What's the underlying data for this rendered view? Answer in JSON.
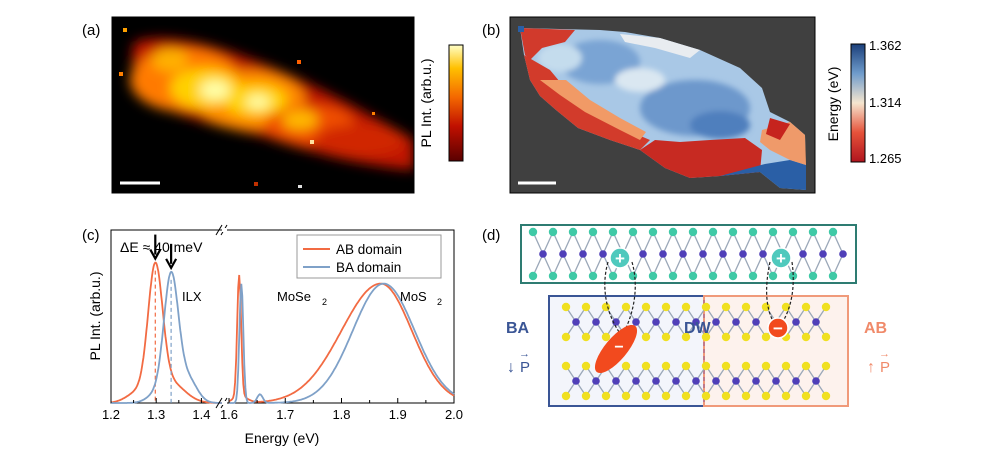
{
  "panels": {
    "a": {
      "label": "(a)",
      "colorbar_label": "PL Int. (arb.u.)"
    },
    "b": {
      "label": "(b)",
      "colorbar_label": "Energy (eV)",
      "colorbar_ticks": [
        "1.362",
        "1.314",
        "1.265"
      ]
    },
    "c": {
      "label": "(c)"
    },
    "d": {
      "label": "(d)",
      "ba_label": "BA",
      "ab_label": "AB",
      "dw_label": "DW",
      "plus_sign": "+",
      "minus_sign": "−",
      "arrow_left": "↓",
      "arrow_right": "↑",
      "p_symbol": "P",
      "p_vec": "→"
    }
  },
  "chart_data": {
    "type": "line",
    "title": "",
    "xlabel": "Energy (eV)",
    "ylabel": "PL Int. (arb.u.)",
    "xlim": [
      1.2,
      2.0
    ],
    "x_axis_break": [
      1.45,
      1.6
    ],
    "xticks": [
      "1.2",
      "1.3",
      "1.4",
      "1.6",
      "1.7",
      "1.8",
      "1.9",
      "2.0"
    ],
    "series": [
      {
        "name": "AB domain",
        "color": "#f26b43",
        "ilx_peak": 1.298,
        "mose2_peak": 1.618,
        "mos2_peak": 1.87
      },
      {
        "name": "BA domain",
        "color": "#7fa1c8",
        "ilx_peak": 1.333,
        "mose2_peak": 1.622,
        "mos2_peak": 1.875
      }
    ],
    "annotations": {
      "delta_e": "ΔE ≈ 40 meV",
      "ilx": "ILX",
      "mose2": "MoSe",
      "mos2": "MoS",
      "subscript_2": "2"
    }
  }
}
